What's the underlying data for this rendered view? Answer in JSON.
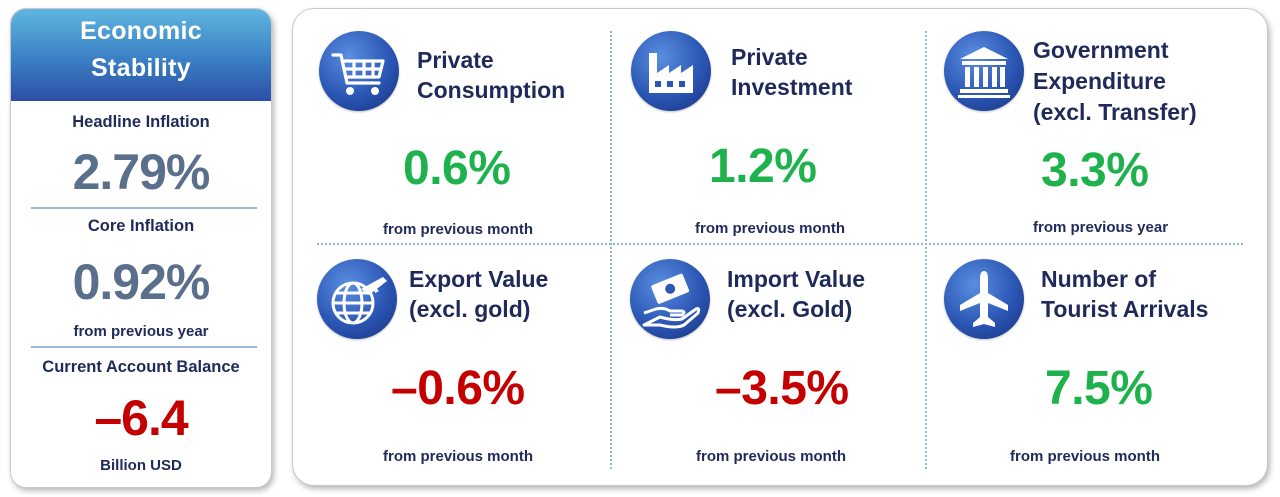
{
  "left": {
    "title_line1": "Economic",
    "title_line2": "Stability",
    "headline_inflation": {
      "label": "Headline Inflation",
      "value": "2.79%"
    },
    "core_inflation": {
      "label": "Core Inflation",
      "value": "0.92%",
      "sub": "from previous year"
    },
    "current_account": {
      "label": "Current Account Balance",
      "value": "–6.4",
      "sub": "Billion USD"
    }
  },
  "cards": {
    "private_consumption": {
      "title_line1": "Private",
      "title_line2": "Consumption",
      "value": "0.6%",
      "sub": "from previous month",
      "icon": "shopping-cart-icon"
    },
    "private_investment": {
      "title_line1": "Private",
      "title_line2": "Investment",
      "value": "1.2%",
      "sub": "from previous month",
      "icon": "factory-icon"
    },
    "government_expenditure": {
      "title_line1": "Government",
      "title_line2": "Expenditure",
      "title_line3": "(excl. Transfer)",
      "value": "3.3%",
      "sub": "from previous year",
      "icon": "government-building-icon"
    },
    "export_value": {
      "title_line1": "Export Value",
      "title_line2": "(excl. gold)",
      "value": "–0.6%",
      "sub": "from previous month",
      "icon": "globe-airplane-icon"
    },
    "import_value": {
      "title_line1": "Import Value",
      "title_line2": "(excl. Gold)",
      "value": "–3.5%",
      "sub": "from previous month",
      "icon": "money-hand-icon"
    },
    "tourist_arrivals": {
      "title_line1": "Number of",
      "title_line2": "Tourist Arrivals",
      "value": "7.5%",
      "sub": "from previous month",
      "icon": "airplane-icon"
    }
  },
  "colors": {
    "positive": "#1eb24c",
    "negative": "#c40000",
    "neutral_value": "#5a6f8c",
    "text_navy": "#1f2a5a",
    "icon_blue": "#2b56b4"
  }
}
